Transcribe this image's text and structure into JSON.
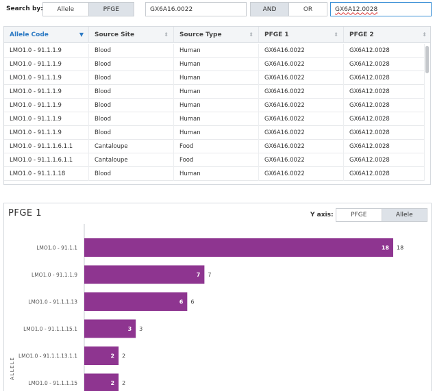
{
  "search": {
    "label": "Search by:",
    "modes": [
      "Allele",
      "PFGE"
    ],
    "active_mode": "PFGE",
    "value1": "GX6A16.0022",
    "operators": [
      "AND",
      "OR"
    ],
    "active_operator": "AND",
    "value2": "GX6A12.0028"
  },
  "table": {
    "columns": [
      "Allele Code",
      "Source Site",
      "Source Type",
      "PFGE 1",
      "PFGE 2"
    ],
    "sorted_column": "Allele Code",
    "rows": [
      [
        "LMO1.0 - 91.1.1.9",
        "Blood",
        "Human",
        "GX6A16.0022",
        "GX6A12.0028"
      ],
      [
        "LMO1.0 - 91.1.1.9",
        "Blood",
        "Human",
        "GX6A16.0022",
        "GX6A12.0028"
      ],
      [
        "LMO1.0 - 91.1.1.9",
        "Blood",
        "Human",
        "GX6A16.0022",
        "GX6A12.0028"
      ],
      [
        "LMO1.0 - 91.1.1.9",
        "Blood",
        "Human",
        "GX6A16.0022",
        "GX6A12.0028"
      ],
      [
        "LMO1.0 - 91.1.1.9",
        "Blood",
        "Human",
        "GX6A16.0022",
        "GX6A12.0028"
      ],
      [
        "LMO1.0 - 91.1.1.9",
        "Blood",
        "Human",
        "GX6A16.0022",
        "GX6A12.0028"
      ],
      [
        "LMO1.0 - 91.1.1.9",
        "Blood",
        "Human",
        "GX6A16.0022",
        "GX6A12.0028"
      ],
      [
        "LMO1.0 - 91.1.1.6.1.1",
        "Cantaloupe",
        "Food",
        "GX6A16.0022",
        "GX6A12.0028"
      ],
      [
        "LMO1.0 - 91.1.1.6.1.1",
        "Cantaloupe",
        "Food",
        "GX6A16.0022",
        "GX6A12.0028"
      ],
      [
        "LMO1.0 - 91.1.1.18",
        "Blood",
        "Human",
        "GX6A16.0022",
        "GX6A12.0028"
      ]
    ]
  },
  "chart_panel": {
    "title": "PFGE 1",
    "yaxis_label": "Y axis:",
    "yaxis_options": [
      "PFGE",
      "Allele"
    ],
    "active_yaxis": "Allele"
  },
  "chart_data": {
    "type": "bar",
    "orientation": "horizontal",
    "ylabel": "ALLELE",
    "categories": [
      "LMO1.0 - 91.1.1",
      "LMO1.0 - 91.1.1.9",
      "LMO1.0 - 91.1.1.13",
      "LMO1.0 - 91.1.1.15.1",
      "LMO1.0 - 91.1.1.13.1.1",
      "LMO1.0 - 91.1.1.15"
    ],
    "values": [
      18,
      7,
      6,
      3,
      2,
      2
    ],
    "bar_color": "#8e3590",
    "xlim": [
      0,
      18
    ]
  },
  "colors": {
    "accent": "#2e7bc4",
    "focus_border": "#3a8fd6",
    "active_segment": "#dde2e8"
  }
}
